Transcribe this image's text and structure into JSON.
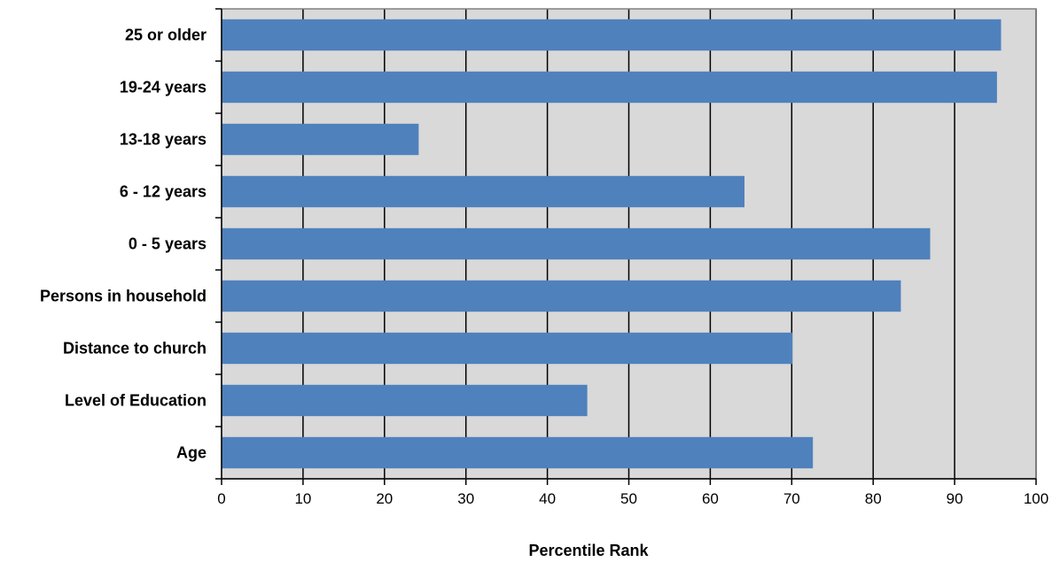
{
  "chart_data": {
    "type": "bar",
    "orientation": "horizontal",
    "categories": [
      "25 or older",
      "19-24 years",
      "13-18 years",
      "6 - 12 years",
      "0 - 5 years",
      "Persons in household",
      "Distance to church",
      "Level of Education",
      "Age"
    ],
    "values": [
      95.7,
      95.2,
      24.2,
      64.2,
      87.0,
      83.4,
      70.1,
      44.9,
      72.6
    ],
    "xlabel": "Percentile Rank",
    "ylabel": "",
    "xlim": [
      0,
      100
    ],
    "xticks": [
      "0",
      "10",
      "20",
      "30",
      "40",
      "50",
      "60",
      "70",
      "80",
      "90",
      "100"
    ],
    "grid": "vertical",
    "bar_color": "#4F81BD",
    "plot_background": "#D9D9D9"
  }
}
